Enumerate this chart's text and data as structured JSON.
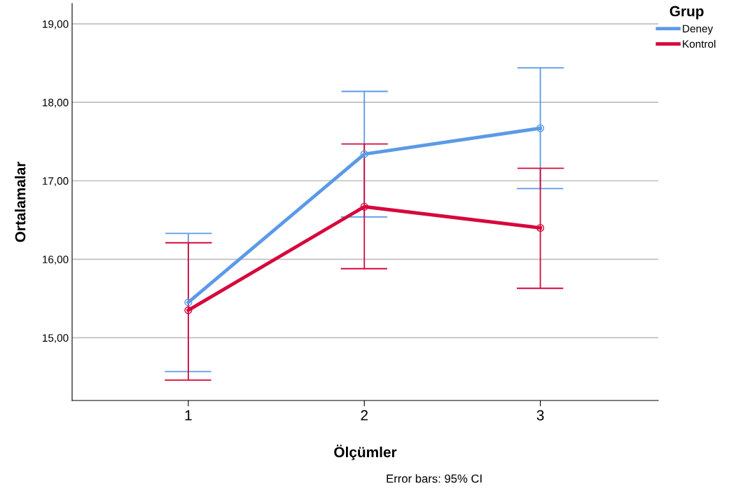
{
  "chart_data": {
    "type": "line",
    "xlabel": "Ölçümler",
    "ylabel": "Ortalamalar",
    "legend_title": "Grup",
    "categories": [
      "1",
      "2",
      "3"
    ],
    "series": [
      {
        "name": "Deney",
        "color": "#5b9ae6",
        "values": [
          15.45,
          17.34,
          17.67
        ],
        "errors": [
          [
            14.57,
            16.33
          ],
          [
            16.54,
            18.14
          ],
          [
            16.9,
            18.44
          ]
        ]
      },
      {
        "name": "Kontrol",
        "color": "#d6083c",
        "values": [
          15.35,
          16.67,
          16.4
        ],
        "errors": [
          [
            14.46,
            16.21
          ],
          [
            15.88,
            17.47
          ],
          [
            15.63,
            17.16
          ]
        ]
      }
    ],
    "ylim": [
      14.2,
      19.26
    ],
    "yticks": [
      {
        "value": 15,
        "label": "15,00"
      },
      {
        "value": 16,
        "label": "16,00"
      },
      {
        "value": 17,
        "label": "17,00"
      },
      {
        "value": 18,
        "label": "18,00"
      },
      {
        "value": 19,
        "label": "19,00"
      }
    ],
    "grid": "y",
    "legend": "top right",
    "marker": "circle",
    "line_style": "solid",
    "annotations": [
      "Error bars: 95% CI"
    ]
  }
}
